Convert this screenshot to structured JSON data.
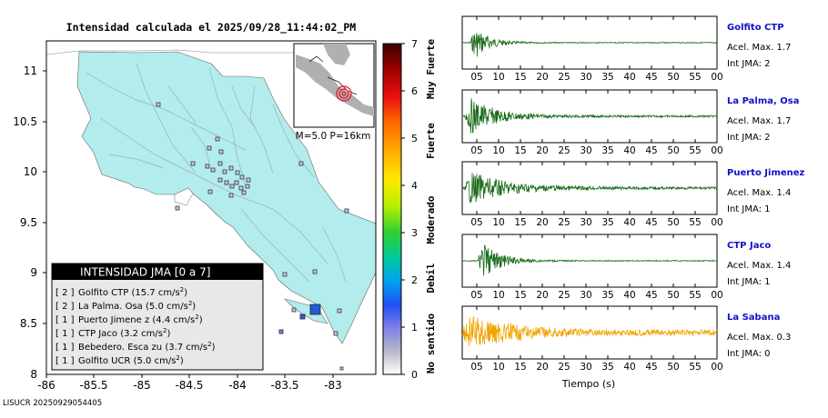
{
  "map": {
    "title": "Intensidad calculada el 2025/09/28_11:44:02_PM",
    "x_ticks": [
      "-86",
      "-85.5",
      "-85",
      "-84.5",
      "-84",
      "-83.5",
      "-83"
    ],
    "y_ticks": [
      "11",
      "10.5",
      "10",
      "9.5",
      "9",
      "8.5",
      "8"
    ],
    "inset_label": "M=5.0 P=16km",
    "footer_id": "LISUCR 20250929054405",
    "colors": {
      "land": "#b3ecec",
      "sea": "#ffffff",
      "epicenter": "#1f5fd1",
      "station_outline": "#333333"
    }
  },
  "legend": {
    "title": "INTENSIDAD JMA [0 a 7]",
    "items": [
      {
        "level": "[ 2 ]",
        "name": "Golfito CTP",
        "value": "(15.7 cm/s",
        "sup": "2",
        "close": ")"
      },
      {
        "level": "[ 2 ]",
        "name": "La Palma. Osa",
        "value": "(5.0 cm/s",
        "sup": "2",
        "close": ")"
      },
      {
        "level": "[ 1 ]",
        "name": "Puerto Jimene z",
        "value": "(4.4 cm/s",
        "sup": "2",
        "close": ")"
      },
      {
        "level": "[ 1 ]",
        "name": "CTP Jaco",
        "value": "(3.2 cm/s",
        "sup": "2",
        "close": ")"
      },
      {
        "level": "[ 1 ]",
        "name": "Bebedero. Esca zu",
        "value": "(3.7 cm/s",
        "sup": "2",
        "close": ")"
      },
      {
        "level": "[ 1 ]",
        "name": "Golfito UCR",
        "value": "(5.0 cm/s",
        "sup": "2",
        "close": ")"
      }
    ]
  },
  "colorbar": {
    "ticks": [
      "7",
      "6",
      "5",
      "4",
      "3",
      "2",
      "1",
      "0"
    ],
    "labels": [
      "Muy Fuerte",
      "Fuerte",
      "Moderado",
      "Debil",
      "No sentido"
    ]
  },
  "seismograms": {
    "x_ticks": [
      "05",
      "10",
      "15",
      "20",
      "25",
      "30",
      "35",
      "40",
      "45",
      "50",
      "55",
      "00"
    ],
    "x_label": "Tiempo (s)",
    "acel_prefix": "Acel. Max.",
    "int_prefix": "Int JMA:",
    "stations": [
      {
        "name": "Golfito CTP",
        "acel": "1.7",
        "int": "2",
        "color": "#1a6b1a"
      },
      {
        "name": "La Palma, Osa",
        "acel": "1.7",
        "int": "2",
        "color": "#1a6b1a"
      },
      {
        "name": "Puerto Jimenez",
        "acel": "1.4",
        "int": "1",
        "color": "#1a6b1a"
      },
      {
        "name": "CTP Jaco",
        "acel": "1.4",
        "int": "1",
        "color": "#1a6b1a"
      },
      {
        "name": "La Sabana",
        "acel": "0.3",
        "int": "0",
        "color": "#f0a500"
      }
    ]
  }
}
